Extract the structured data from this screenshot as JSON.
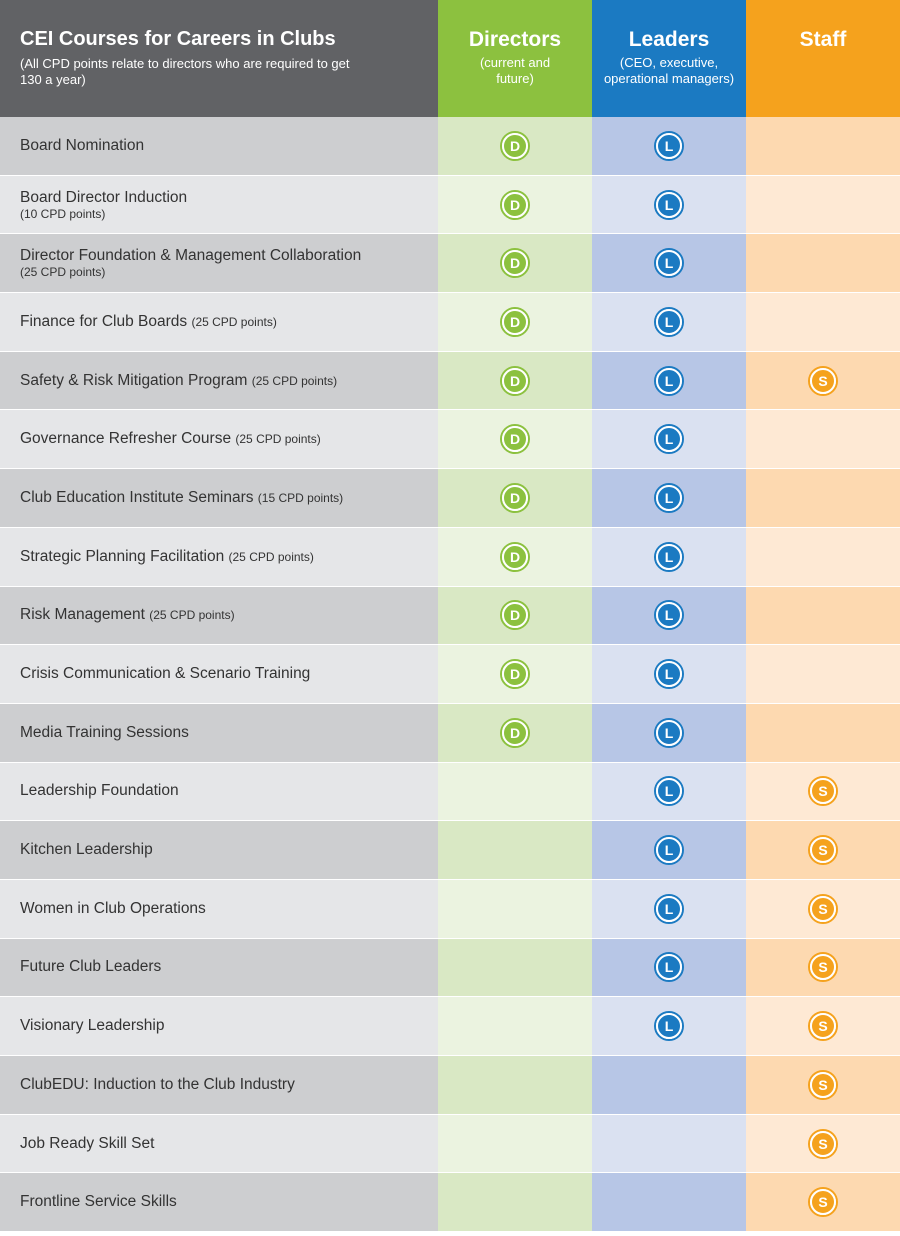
{
  "header": {
    "title": "CEI Courses for Careers in Clubs",
    "subtitle": "(All CPD points relate to directors who are required to get 130 a year)",
    "directors": {
      "label": "Directors",
      "sub": "(current and future)"
    },
    "leaders": {
      "label": "Leaders",
      "sub": "(CEO, executive, operational managers)"
    },
    "staff": {
      "label": "Staff"
    }
  },
  "badges": {
    "directors": "D",
    "leaders": "L",
    "staff": "S"
  },
  "colors": {
    "header_gray": "#616265",
    "directors_green": "#8cc13f",
    "leaders_blue": "#1b7ac2",
    "staff_orange": "#f5a21d"
  },
  "courses": [
    {
      "name": "Board Nomination",
      "note": "",
      "sub": "",
      "d": true,
      "l": true,
      "s": false
    },
    {
      "name": "Board Director Induction",
      "note": "",
      "sub": "(10 CPD points)",
      "d": true,
      "l": true,
      "s": false
    },
    {
      "name": "Director Foundation & Management Collaboration",
      "note": "",
      "sub": "(25 CPD points)",
      "d": true,
      "l": true,
      "s": false
    },
    {
      "name": "Finance for Club Boards",
      "note": "(25 CPD points)",
      "sub": "",
      "d": true,
      "l": true,
      "s": false
    },
    {
      "name": "Safety & Risk Mitigation Program",
      "note": "(25 CPD points)",
      "sub": "",
      "d": true,
      "l": true,
      "s": true
    },
    {
      "name": "Governance Refresher Course",
      "note": "(25 CPD points)",
      "sub": "",
      "d": true,
      "l": true,
      "s": false
    },
    {
      "name": "Club Education Institute Seminars",
      "note": "(15 CPD points)",
      "sub": "",
      "d": true,
      "l": true,
      "s": false
    },
    {
      "name": "Strategic Planning Facilitation",
      "note": "(25 CPD points)",
      "sub": "",
      "d": true,
      "l": true,
      "s": false
    },
    {
      "name": "Risk Management",
      "note": "(25 CPD points)",
      "sub": "",
      "d": true,
      "l": true,
      "s": false
    },
    {
      "name": "Crisis Communication & Scenario Training",
      "note": "",
      "sub": "",
      "d": true,
      "l": true,
      "s": false
    },
    {
      "name": "Media Training Sessions",
      "note": "",
      "sub": "",
      "d": true,
      "l": true,
      "s": false
    },
    {
      "name": "Leadership Foundation",
      "note": "",
      "sub": "",
      "d": false,
      "l": true,
      "s": true
    },
    {
      "name": "Kitchen Leadership",
      "note": "",
      "sub": "",
      "d": false,
      "l": true,
      "s": true
    },
    {
      "name": "Women in Club Operations",
      "note": "",
      "sub": "",
      "d": false,
      "l": true,
      "s": true
    },
    {
      "name": "Future Club Leaders",
      "note": "",
      "sub": "",
      "d": false,
      "l": true,
      "s": true
    },
    {
      "name": "Visionary Leadership",
      "note": "",
      "sub": "",
      "d": false,
      "l": true,
      "s": true
    },
    {
      "name": "ClubEDU: Induction to the Club Industry",
      "note": "",
      "sub": "",
      "d": false,
      "l": false,
      "s": true
    },
    {
      "name": "Job Ready Skill Set",
      "note": "",
      "sub": "",
      "d": false,
      "l": false,
      "s": true
    },
    {
      "name": "Frontline Service Skills",
      "note": "",
      "sub": "",
      "d": false,
      "l": false,
      "s": true
    }
  ]
}
